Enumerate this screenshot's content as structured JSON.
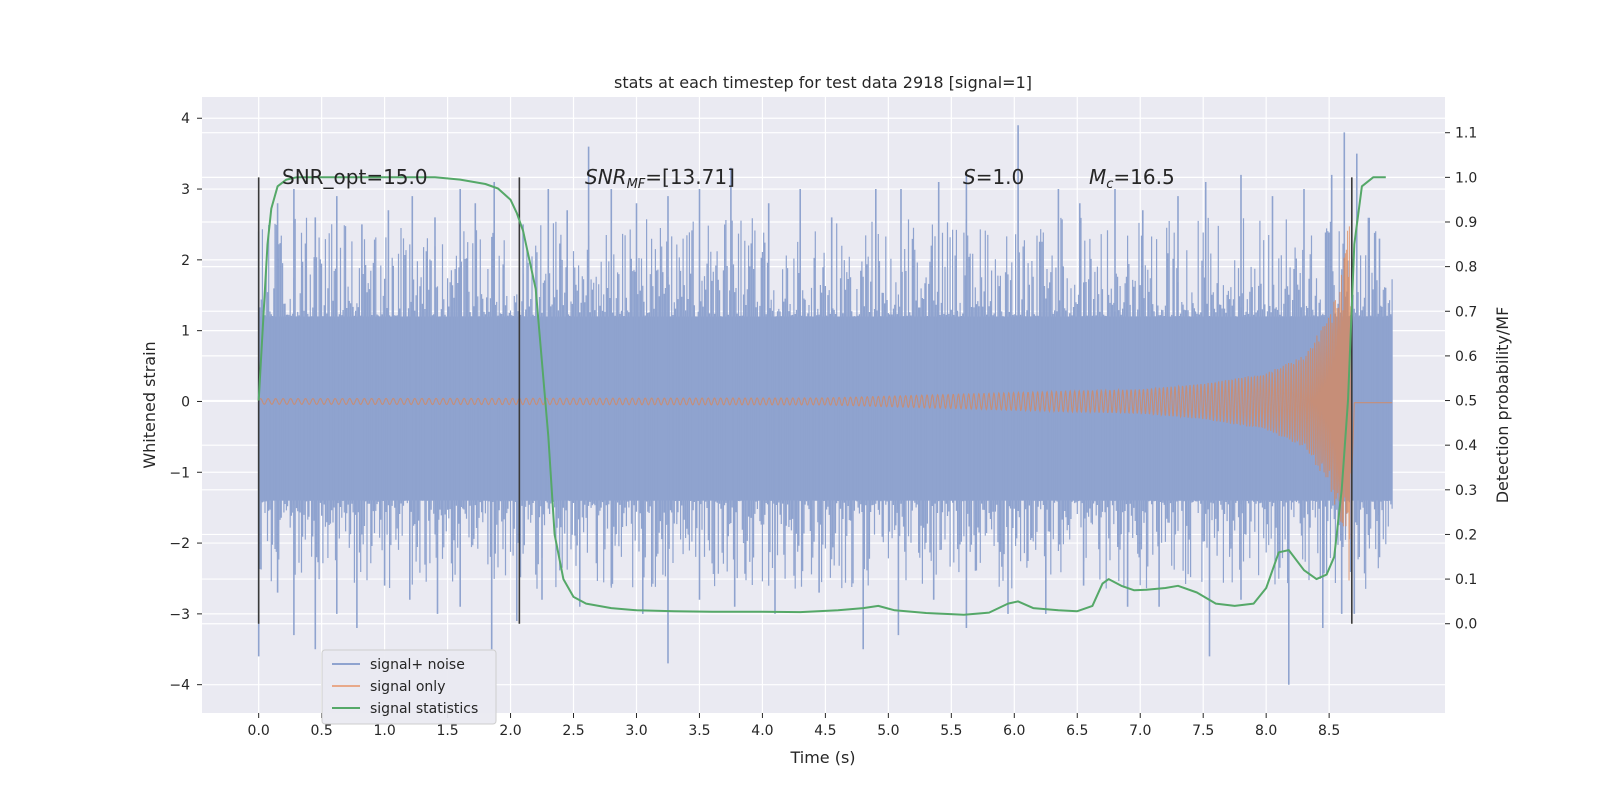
{
  "chart_data": {
    "type": "line",
    "title": "stats at each timestep for test data 2918 [signal=1]",
    "xlabel": "Time (s)",
    "ylabel_left": "Whitened strain",
    "ylabel_right": "Detection probability/MF",
    "xlim": [
      -0.45,
      9.42
    ],
    "ylim_left": [
      -4.4,
      4.3
    ],
    "ylim_right": [
      -0.2,
      1.18
    ],
    "x_ticks": [
      "0.0",
      "0.5",
      "1.0",
      "1.5",
      "2.0",
      "2.5",
      "3.0",
      "3.5",
      "4.0",
      "4.5",
      "5.0",
      "5.5",
      "6.0",
      "6.5",
      "7.0",
      "7.5",
      "8.0",
      "8.5"
    ],
    "y_ticks_left": [
      "4",
      "3",
      "2",
      "1",
      "0",
      "−1",
      "−2",
      "−3",
      "−4"
    ],
    "y_ticks_right": [
      "1.1",
      "1.0",
      "0.9",
      "0.8",
      "0.7",
      "0.6",
      "0.5",
      "0.4",
      "0.3",
      "0.2",
      "0.1",
      "0.0"
    ],
    "annotations": {
      "snr_opt": "SNR_opt=15.0",
      "snr_mf_sym": "SNR",
      "snr_mf_sub": "MF",
      "snr_mf_val": "=[13.71]",
      "s_sym": "S",
      "s_val": "=1.0",
      "mc_sym": "M",
      "mc_sub": "c",
      "mc_val": "=16.5"
    },
    "legend": {
      "placement": "lower-left",
      "entries": [
        "signal+ noise",
        "signal only",
        "signal statistics"
      ]
    },
    "vertical_markers_x": [
      0.0,
      2.07,
      8.68
    ],
    "series": [
      {
        "name": "signal+ noise",
        "axis": "left",
        "color": "#8fa3cf",
        "x_range": [
          0.0,
          9.0
        ],
        "band_lower": -1.4,
        "band_upper": 1.2,
        "spikes_up": [
          [
            0.0,
            2.4
          ],
          [
            0.15,
            2.8
          ],
          [
            0.28,
            3.0
          ],
          [
            0.45,
            2.6
          ],
          [
            0.62,
            2.9
          ],
          [
            0.82,
            2.5
          ],
          [
            1.03,
            2.7
          ],
          [
            1.22,
            2.9
          ],
          [
            1.4,
            2.6
          ],
          [
            1.6,
            3.0
          ],
          [
            1.72,
            2.8
          ],
          [
            1.87,
            3.1
          ],
          [
            2.1,
            2.5
          ],
          [
            2.3,
            3.0
          ],
          [
            2.45,
            2.7
          ],
          [
            2.62,
            3.6
          ],
          [
            2.8,
            3.0
          ],
          [
            3.0,
            2.8
          ],
          [
            3.25,
            2.9
          ],
          [
            3.5,
            3.0
          ],
          [
            3.75,
            3.3
          ],
          [
            4.05,
            2.8
          ],
          [
            4.3,
            3.0
          ],
          [
            4.55,
            2.6
          ],
          [
            4.9,
            3.0
          ],
          [
            5.1,
            3.0
          ],
          [
            5.4,
            3.1
          ],
          [
            5.62,
            3.2
          ],
          [
            6.03,
            3.9
          ],
          [
            6.35,
            3.0
          ],
          [
            6.52,
            2.8
          ],
          [
            6.8,
            3.0
          ],
          [
            7.02,
            2.7
          ],
          [
            7.3,
            2.9
          ],
          [
            7.52,
            3.1
          ],
          [
            7.8,
            3.2
          ],
          [
            8.05,
            2.9
          ],
          [
            8.3,
            3.0
          ],
          [
            8.52,
            3.2
          ],
          [
            8.62,
            3.8
          ],
          [
            8.72,
            3.5
          ],
          [
            8.9,
            2.3
          ]
        ],
        "spikes_down": [
          [
            0.0,
            -3.6
          ],
          [
            0.15,
            -2.7
          ],
          [
            0.28,
            -3.3
          ],
          [
            0.45,
            -3.5
          ],
          [
            0.62,
            -3.0
          ],
          [
            0.78,
            -3.2
          ],
          [
            1.0,
            -2.6
          ],
          [
            1.2,
            -2.8
          ],
          [
            1.42,
            -3.0
          ],
          [
            1.6,
            -2.9
          ],
          [
            1.85,
            -3.5
          ],
          [
            2.05,
            -3.1
          ],
          [
            2.25,
            -2.8
          ],
          [
            2.55,
            -2.9
          ],
          [
            2.8,
            -2.6
          ],
          [
            3.05,
            -3.0
          ],
          [
            3.25,
            -3.7
          ],
          [
            3.5,
            -2.8
          ],
          [
            3.78,
            -2.9
          ],
          [
            4.1,
            -3.0
          ],
          [
            4.45,
            -2.7
          ],
          [
            4.8,
            -3.5
          ],
          [
            5.08,
            -3.3
          ],
          [
            5.36,
            -2.8
          ],
          [
            5.62,
            -3.2
          ],
          [
            5.95,
            -3.0
          ],
          [
            6.25,
            -3.0
          ],
          [
            6.55,
            -2.6
          ],
          [
            6.9,
            -2.9
          ],
          [
            7.15,
            -2.9
          ],
          [
            7.55,
            -3.6
          ],
          [
            7.8,
            -2.8
          ],
          [
            8.18,
            -4.0
          ],
          [
            8.45,
            -3.2
          ],
          [
            8.6,
            -3.0
          ],
          [
            8.7,
            -3.0
          ],
          [
            8.9,
            -2.2
          ]
        ]
      },
      {
        "name": "signal only",
        "axis": "left",
        "color": "#dd8452",
        "envelope": [
          [
            0.0,
            0.04
          ],
          [
            4.5,
            0.05
          ],
          [
            5.5,
            0.1
          ],
          [
            6.5,
            0.15
          ],
          [
            7.0,
            0.17
          ],
          [
            7.5,
            0.25
          ],
          [
            8.0,
            0.4
          ],
          [
            8.3,
            0.65
          ],
          [
            8.5,
            1.2
          ],
          [
            8.6,
            1.8
          ],
          [
            8.66,
            2.6
          ],
          [
            8.68,
            3.0
          ],
          [
            8.7,
            0.05
          ],
          [
            9.0,
            0.05
          ]
        ]
      },
      {
        "name": "signal statistics",
        "axis": "right",
        "color": "#55a868",
        "points": [
          [
            0.0,
            0.5
          ],
          [
            0.04,
            0.7
          ],
          [
            0.07,
            0.85
          ],
          [
            0.1,
            0.93
          ],
          [
            0.15,
            0.98
          ],
          [
            0.22,
            0.995
          ],
          [
            0.3,
            1.0
          ],
          [
            0.6,
            1.0
          ],
          [
            1.0,
            1.0
          ],
          [
            1.4,
            1.0
          ],
          [
            1.6,
            0.995
          ],
          [
            1.8,
            0.985
          ],
          [
            1.9,
            0.975
          ],
          [
            2.0,
            0.95
          ],
          [
            2.05,
            0.92
          ],
          [
            2.1,
            0.88
          ],
          [
            2.2,
            0.75
          ],
          [
            2.3,
            0.42
          ],
          [
            2.35,
            0.2
          ],
          [
            2.42,
            0.1
          ],
          [
            2.5,
            0.06
          ],
          [
            2.6,
            0.045
          ],
          [
            2.8,
            0.035
          ],
          [
            3.0,
            0.03
          ],
          [
            3.3,
            0.028
          ],
          [
            3.6,
            0.027
          ],
          [
            4.0,
            0.027
          ],
          [
            4.3,
            0.026
          ],
          [
            4.6,
            0.03
          ],
          [
            4.8,
            0.035
          ],
          [
            4.92,
            0.04
          ],
          [
            5.05,
            0.03
          ],
          [
            5.3,
            0.024
          ],
          [
            5.6,
            0.02
          ],
          [
            5.8,
            0.025
          ],
          [
            5.95,
            0.045
          ],
          [
            6.03,
            0.05
          ],
          [
            6.15,
            0.035
          ],
          [
            6.35,
            0.03
          ],
          [
            6.5,
            0.028
          ],
          [
            6.62,
            0.04
          ],
          [
            6.7,
            0.09
          ],
          [
            6.75,
            0.1
          ],
          [
            6.85,
            0.085
          ],
          [
            6.95,
            0.075
          ],
          [
            7.05,
            0.076
          ],
          [
            7.2,
            0.08
          ],
          [
            7.3,
            0.085
          ],
          [
            7.45,
            0.07
          ],
          [
            7.6,
            0.045
          ],
          [
            7.75,
            0.04
          ],
          [
            7.9,
            0.045
          ],
          [
            8.0,
            0.08
          ],
          [
            8.1,
            0.16
          ],
          [
            8.18,
            0.165
          ],
          [
            8.3,
            0.12
          ],
          [
            8.4,
            0.1
          ],
          [
            8.48,
            0.11
          ],
          [
            8.54,
            0.15
          ],
          [
            8.6,
            0.3
          ],
          [
            8.65,
            0.5
          ],
          [
            8.7,
            0.85
          ],
          [
            8.76,
            0.98
          ],
          [
            8.85,
            1.0
          ],
          [
            8.95,
            1.0
          ]
        ]
      }
    ],
    "grid": true,
    "background": "#eaeaf2"
  }
}
